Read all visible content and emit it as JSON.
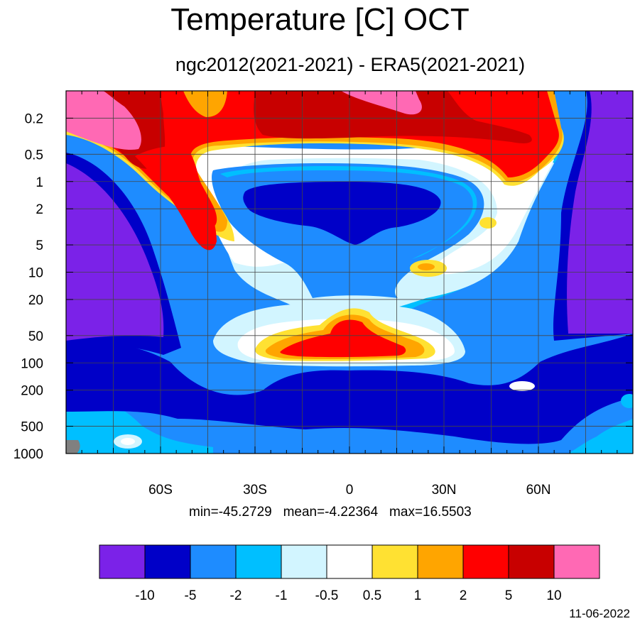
{
  "chart_data": {
    "type": "heatmap",
    "title": "Temperature [C] OCT",
    "subtitle": "ngc2012(2021-2021) - ERA5(2021-2021)",
    "x_ticks": [
      "60S",
      "30S",
      "0",
      "30N",
      "60N"
    ],
    "x_tick_values": [
      -60,
      -30,
      0,
      30,
      60
    ],
    "xlim": [
      -90,
      90
    ],
    "y_ticks": [
      "0.2",
      "0.5",
      "1",
      "2",
      "5",
      "10",
      "20",
      "50",
      "100",
      "200",
      "500",
      "1000"
    ],
    "y_tick_values": [
      0.2,
      0.5,
      1,
      2,
      5,
      10,
      20,
      50,
      100,
      200,
      500,
      1000
    ],
    "ylim": [
      1000,
      0.1
    ],
    "y_scale": "log",
    "grid": true,
    "stats": {
      "min": "min=-45.2729",
      "mean": "mean=-4.22364",
      "max": "max=16.5503"
    },
    "colorbar": {
      "colors": [
        "#7b22e8",
        "#0000c8",
        "#1e8cff",
        "#00bfff",
        "#d2f5ff",
        "#ffffff",
        "#ffe132",
        "#ffa500",
        "#ff0000",
        "#c80000",
        "#ff69b4"
      ],
      "labels": [
        "-10",
        "-5",
        "-2",
        "-1",
        "-0.5",
        "0.5",
        "1",
        "2",
        "5",
        "10"
      ]
    },
    "missing_color": "#808080"
  },
  "footer": {
    "date": "11-06-2022"
  }
}
